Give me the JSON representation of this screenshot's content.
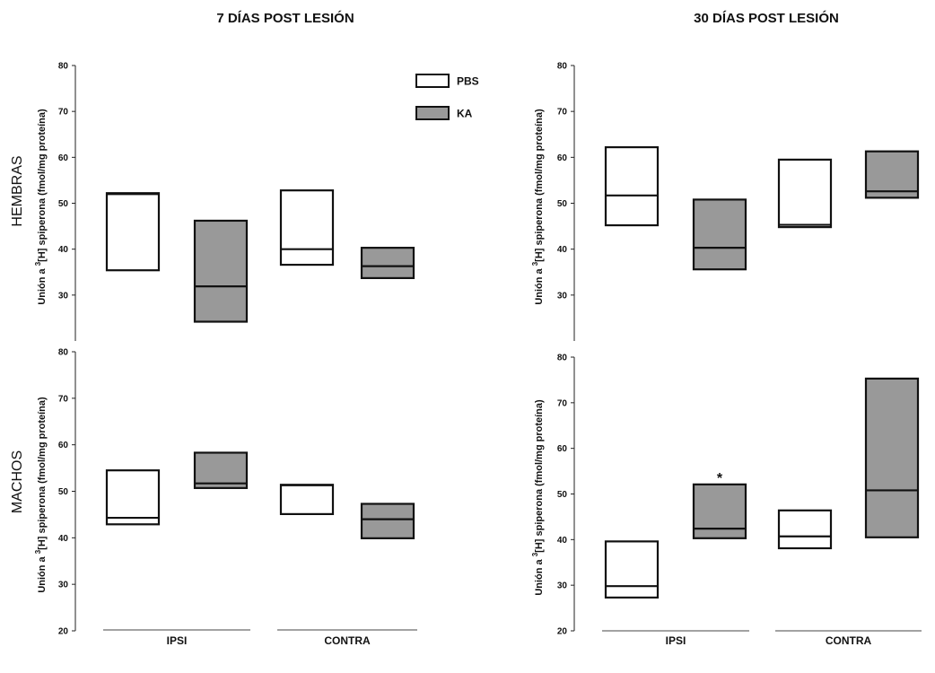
{
  "col_titles": [
    "7 DÍAS POST LESIÓN",
    "30 DÍAS POST LESIÓN"
  ],
  "row_labels": [
    "HEMBRAS",
    "MACHOS"
  ],
  "y_label_prefix": "Unión a ",
  "y_label_sup": "3",
  "y_label_suffix": "[H] spiperona (fmol/mg proteína)",
  "legend": [
    {
      "label": "PBS",
      "color": "#ffffff"
    },
    {
      "label": "KA",
      "color": "#999999"
    }
  ],
  "chart_data": [
    {
      "type": "box",
      "title": "7 DÍAS POST LESIÓN",
      "row": "HEMBRAS",
      "ylabel": "Unión a 3[H] spiperona (fmol/mg proteína)",
      "ylim": [
        20,
        80
      ],
      "yticks": [
        30,
        40,
        50,
        60,
        70,
        80
      ],
      "categories": [],
      "series": [
        {
          "name": "PBS",
          "color": "#ffffff",
          "boxes": [
            {
              "q1": 35.4,
              "median": 52.0,
              "q3": 52.2
            },
            {
              "q1": 36.6,
              "median": 40.0,
              "q3": 52.8
            }
          ]
        },
        {
          "name": "KA",
          "color": "#999999",
          "boxes": [
            {
              "q1": 24.2,
              "median": 31.9,
              "q3": 46.2
            },
            {
              "q1": 33.7,
              "median": 36.3,
              "q3": 40.3
            }
          ]
        }
      ]
    },
    {
      "type": "box",
      "title": "30 DÍAS POST LESIÓN",
      "row": "HEMBRAS",
      "ylabel": "Unión a 3[H] spiperona (fmol/mg proteína)",
      "ylim": [
        20,
        80
      ],
      "yticks": [
        30,
        40,
        50,
        60,
        70,
        80
      ],
      "categories": [],
      "series": [
        {
          "name": "PBS",
          "color": "#ffffff",
          "boxes": [
            {
              "q1": 45.2,
              "median": 51.7,
              "q3": 62.2
            },
            {
              "q1": 44.8,
              "median": 45.3,
              "q3": 59.5
            }
          ]
        },
        {
          "name": "KA",
          "color": "#999999",
          "boxes": [
            {
              "q1": 35.6,
              "median": 40.3,
              "q3": 50.8
            },
            {
              "q1": 51.2,
              "median": 52.6,
              "q3": 61.3
            }
          ]
        }
      ]
    },
    {
      "type": "box",
      "title": "7 DÍAS POST LESIÓN",
      "row": "MACHOS",
      "ylabel": "Unión a 3[H] spiperona (fmol/mg proteína)",
      "ylim": [
        20,
        80
      ],
      "yticks": [
        20,
        30,
        40,
        50,
        60,
        70,
        80
      ],
      "categories": [
        "IPSI",
        "CONTRA"
      ],
      "series": [
        {
          "name": "PBS",
          "color": "#ffffff",
          "boxes": [
            {
              "q1": 42.9,
              "median": 44.3,
              "q3": 54.5
            },
            {
              "q1": 45.1,
              "median": 51.3,
              "q3": 51.4
            }
          ]
        },
        {
          "name": "KA",
          "color": "#999999",
          "boxes": [
            {
              "q1": 50.7,
              "median": 51.7,
              "q3": 58.3
            },
            {
              "q1": 39.9,
              "median": 44.0,
              "q3": 47.3
            }
          ]
        }
      ]
    },
    {
      "type": "box",
      "title": "30 DÍAS POST LESIÓN",
      "row": "MACHOS",
      "ylabel": "Unión a 3[H] spiperona (fmol/mg proteína)",
      "ylim": [
        20,
        80
      ],
      "yticks": [
        20,
        30,
        40,
        50,
        60,
        70,
        80
      ],
      "categories": [
        "IPSI",
        "CONTRA"
      ],
      "series": [
        {
          "name": "PBS",
          "color": "#ffffff",
          "boxes": [
            {
              "q1": 27.3,
              "median": 29.8,
              "q3": 39.6
            },
            {
              "q1": 38.1,
              "median": 40.7,
              "q3": 46.4
            }
          ]
        },
        {
          "name": "KA",
          "color": "#999999",
          "boxes": [
            {
              "q1": 40.3,
              "median": 42.4,
              "q3": 52.1
            },
            {
              "q1": 40.5,
              "median": 50.8,
              "q3": 75.3
            }
          ]
        }
      ],
      "annotations": [
        {
          "text": "*",
          "series": "KA",
          "category": "IPSI"
        }
      ]
    }
  ]
}
